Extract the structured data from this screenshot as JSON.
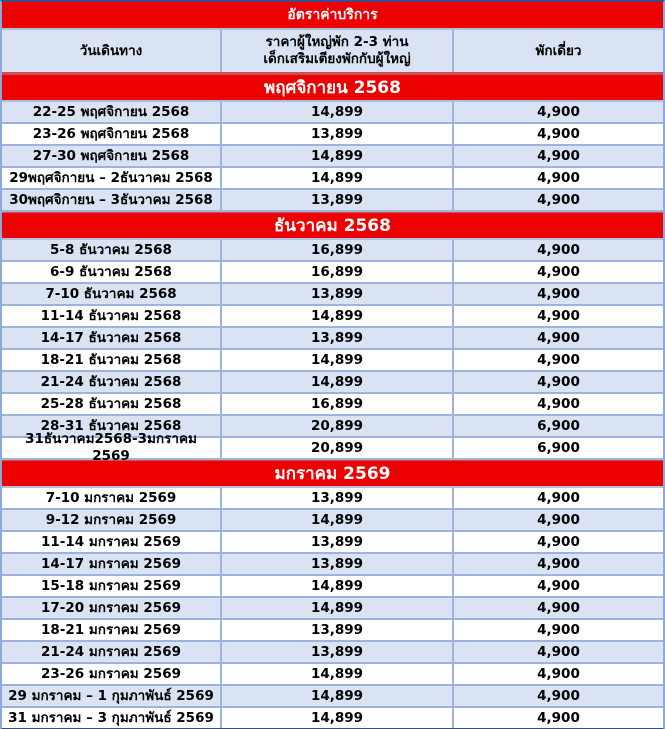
{
  "table": {
    "title": "อัตราค่าบริการ",
    "columns": [
      {
        "label": "วันเดินทาง"
      },
      {
        "line1": "ราคาผู้ใหญ่พัก 2-3 ท่าน",
        "line2": "เด็กเสริมเตียงพักกับผู้ใหญ่"
      },
      {
        "label": "พักเดี่ยว"
      }
    ],
    "sections": [
      {
        "header": "พฤศจิกายน 2568",
        "rows": [
          {
            "date": "22-25 พฤศจิกายน 2568",
            "price": "14,899",
            "single": "4,900",
            "shaded": true
          },
          {
            "date": "23-26 พฤศจิกายน 2568",
            "price": "13,899",
            "single": "4,900",
            "shaded": false
          },
          {
            "date": "27-30 พฤศจิกายน 2568",
            "price": "14,899",
            "single": "4,900",
            "shaded": true
          },
          {
            "date": "29พฤศจิกายน – 2ธันวาคม 2568",
            "price": "14,899",
            "single": "4,900",
            "shaded": false
          },
          {
            "date": "30พฤศจิกายน – 3ธันวาคม 2568",
            "price": "13,899",
            "single": "4,900",
            "shaded": true
          }
        ]
      },
      {
        "header": "ธันวาคม 2568",
        "rows": [
          {
            "date": "5-8 ธันวาคม 2568",
            "price": "16,899",
            "single": "4,900",
            "shaded": true
          },
          {
            "date": "6-9 ธันวาคม 2568",
            "price": "16,899",
            "single": "4,900",
            "shaded": false
          },
          {
            "date": "7-10 ธันวาคม 2568",
            "price": "13,899",
            "single": "4,900",
            "shaded": true
          },
          {
            "date": "11-14 ธันวาคม 2568",
            "price": "14,899",
            "single": "4,900",
            "shaded": false
          },
          {
            "date": "14-17 ธันวาคม 2568",
            "price": "13,899",
            "single": "4,900",
            "shaded": true
          },
          {
            "date": "18-21 ธันวาคม 2568",
            "price": "14,899",
            "single": "4,900",
            "shaded": false
          },
          {
            "date": "21-24 ธันวาคม 2568",
            "price": "14,899",
            "single": "4,900",
            "shaded": true
          },
          {
            "date": "25-28 ธันวาคม 2568",
            "price": "16,899",
            "single": "4,900",
            "shaded": false
          },
          {
            "date": "28-31 ธันวาคม 2568",
            "price": "20,899",
            "single": "6,900",
            "shaded": true
          },
          {
            "date": "31ธันวาคม2568-3มกราคม 2569",
            "price": "20,899",
            "single": "6,900",
            "shaded": false
          }
        ]
      },
      {
        "header": "มกราคม 2569",
        "rows": [
          {
            "date": "7-10 มกราคม 2569",
            "price": "13,899",
            "single": "4,900",
            "shaded": false
          },
          {
            "date": "9-12 มกราคม 2569",
            "price": "14,899",
            "single": "4,900",
            "shaded": true
          },
          {
            "date": "11-14 มกราคม 2569",
            "price": "13,899",
            "single": "4,900",
            "shaded": false
          },
          {
            "date": "14-17 มกราคม 2569",
            "price": "13,899",
            "single": "4,900",
            "shaded": true
          },
          {
            "date": "15-18 มกราคม 2569",
            "price": "14,899",
            "single": "4,900",
            "shaded": false
          },
          {
            "date": "17-20 มกราคม 2569",
            "price": "14,899",
            "single": "4,900",
            "shaded": true
          },
          {
            "date": "18-21 มกราคม 2569",
            "price": "13,899",
            "single": "4,900",
            "shaded": false
          },
          {
            "date": "21-24 มกราคม 2569",
            "price": "13,899",
            "single": "4,900",
            "shaded": true
          },
          {
            "date": "23-26 มกราคม 2569",
            "price": "14,899",
            "single": "4,900",
            "shaded": false
          },
          {
            "date": "29 มกราคม – 1 กุมภาพันธ์ 2569",
            "price": "14,899",
            "single": "4,900",
            "shaded": true
          },
          {
            "date": "31 มกราคม – 3 กุมภาพันธ์ 2569",
            "price": "14,899",
            "single": "4,900",
            "shaded": false
          }
        ]
      }
    ],
    "colors": {
      "accent_red": "#ec0000",
      "shaded_row": "#dae3f3",
      "grid_border": "#9db3dc",
      "header_text": "#ffffff",
      "body_text": "#000000"
    }
  }
}
